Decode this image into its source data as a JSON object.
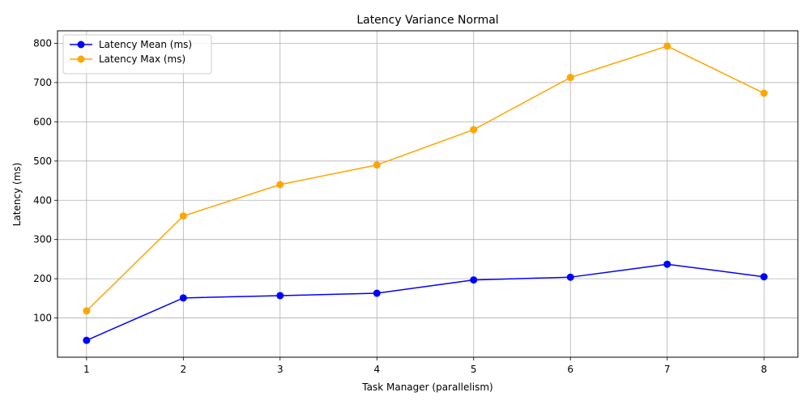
{
  "chart_data": {
    "type": "line",
    "title": "Latency Variance Normal",
    "xlabel": "Task Manager (parallelism)",
    "ylabel": "Latency (ms)",
    "x": [
      1,
      2,
      3,
      4,
      5,
      6,
      7,
      8
    ],
    "xlim": [
      0.7,
      8.35
    ],
    "ylim": [
      0,
      832
    ],
    "yticks": [
      100,
      200,
      300,
      400,
      500,
      600,
      700,
      800
    ],
    "grid": true,
    "legend_position": "top-left",
    "series": [
      {
        "name": "Latency Mean (ms)",
        "color": "#0000ff",
        "marker": "circle",
        "values": [
          43,
          151,
          157,
          163,
          197,
          204,
          237,
          205
        ]
      },
      {
        "name": "Latency Max (ms)",
        "color": "#ffa500",
        "marker": "circle",
        "values": [
          118,
          360,
          440,
          490,
          580,
          713,
          793,
          673
        ]
      }
    ]
  }
}
